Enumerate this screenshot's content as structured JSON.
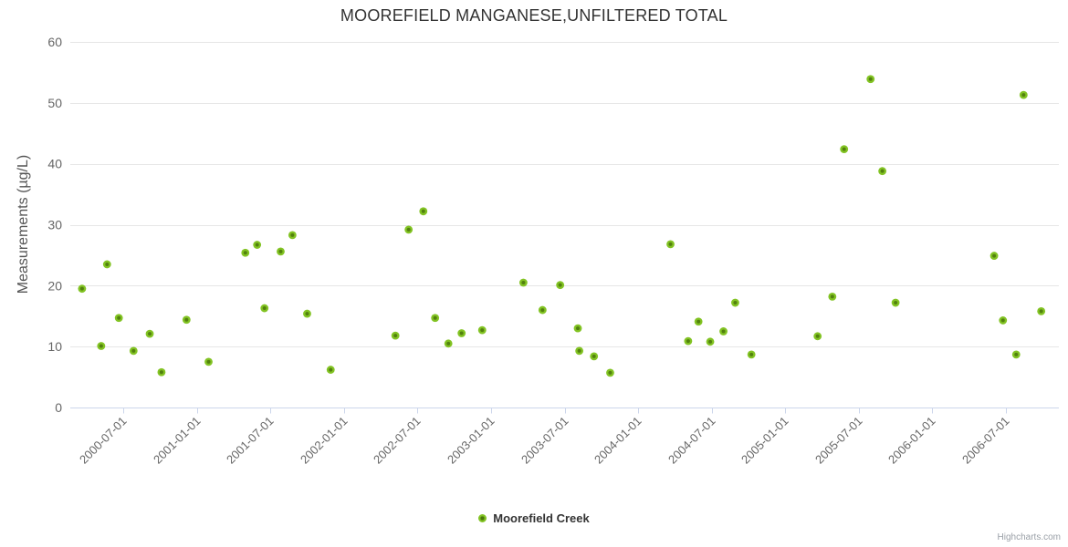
{
  "credit": "Highcharts.com",
  "colors": {
    "background": "#ffffff",
    "title_text": "#333333",
    "axis_label_text": "#666666",
    "gridline": "#e6e6e6",
    "axis_line": "#ccd6eb",
    "marker_outer": "#82c323",
    "marker_inner": "#4a760b"
  },
  "chart_data": {
    "type": "scatter",
    "title": "MOOREFIELD MANGANESE,UNFILTERED TOTAL",
    "xlabel": "",
    "ylabel": "Measurements (µg/L)",
    "ylim": [
      0,
      60
    ],
    "yticks": [
      0,
      10,
      20,
      30,
      40,
      50,
      60
    ],
    "xlim": [
      2000.14,
      2006.86
    ],
    "grid": true,
    "legend_position": "bottom-center",
    "xticks": [
      {
        "t": 2000.5,
        "label": "2000-07-01"
      },
      {
        "t": 2001.0,
        "label": "2001-01-01"
      },
      {
        "t": 2001.5,
        "label": "2001-07-01"
      },
      {
        "t": 2002.0,
        "label": "2002-01-01"
      },
      {
        "t": 2002.5,
        "label": "2002-07-01"
      },
      {
        "t": 2003.0,
        "label": "2003-01-01"
      },
      {
        "t": 2003.5,
        "label": "2003-07-01"
      },
      {
        "t": 2004.0,
        "label": "2004-01-01"
      },
      {
        "t": 2004.5,
        "label": "2004-07-01"
      },
      {
        "t": 2005.0,
        "label": "2005-01-01"
      },
      {
        "t": 2005.5,
        "label": "2005-07-01"
      },
      {
        "t": 2006.0,
        "label": "2006-01-01"
      },
      {
        "t": 2006.5,
        "label": "2006-07-01"
      }
    ],
    "series": [
      {
        "name": "Moorefield Creek",
        "color": "#82c323",
        "points": [
          [
            2000.22,
            19.5
          ],
          [
            2000.35,
            10.1
          ],
          [
            2000.39,
            23.5
          ],
          [
            2000.47,
            14.7
          ],
          [
            2000.57,
            9.3
          ],
          [
            2000.68,
            12.1
          ],
          [
            2000.76,
            5.8
          ],
          [
            2000.93,
            14.4
          ],
          [
            2001.08,
            7.5
          ],
          [
            2001.33,
            25.4
          ],
          [
            2001.41,
            26.7
          ],
          [
            2001.46,
            16.3
          ],
          [
            2001.57,
            25.6
          ],
          [
            2001.65,
            28.3
          ],
          [
            2001.75,
            15.4
          ],
          [
            2001.91,
            6.2
          ],
          [
            2002.35,
            11.8
          ],
          [
            2002.44,
            29.2
          ],
          [
            2002.54,
            32.2
          ],
          [
            2002.62,
            14.7
          ],
          [
            2002.71,
            10.5
          ],
          [
            2002.8,
            12.2
          ],
          [
            2002.94,
            12.7
          ],
          [
            2003.22,
            20.5
          ],
          [
            2003.35,
            16.0
          ],
          [
            2003.47,
            20.1
          ],
          [
            2003.59,
            13.0
          ],
          [
            2003.6,
            9.3
          ],
          [
            2003.7,
            8.4
          ],
          [
            2003.81,
            5.7
          ],
          [
            2004.22,
            26.8
          ],
          [
            2004.34,
            10.9
          ],
          [
            2004.41,
            14.1
          ],
          [
            2004.49,
            10.8
          ],
          [
            2004.58,
            12.5
          ],
          [
            2004.66,
            17.2
          ],
          [
            2004.77,
            8.7
          ],
          [
            2005.22,
            11.7
          ],
          [
            2005.32,
            18.2
          ],
          [
            2005.4,
            42.4
          ],
          [
            2005.58,
            53.9
          ],
          [
            2005.66,
            38.8
          ],
          [
            2005.75,
            17.2
          ],
          [
            2006.42,
            24.9
          ],
          [
            2006.48,
            14.3
          ],
          [
            2006.57,
            8.7
          ],
          [
            2006.62,
            51.3
          ],
          [
            2006.74,
            15.8
          ]
        ]
      }
    ]
  }
}
